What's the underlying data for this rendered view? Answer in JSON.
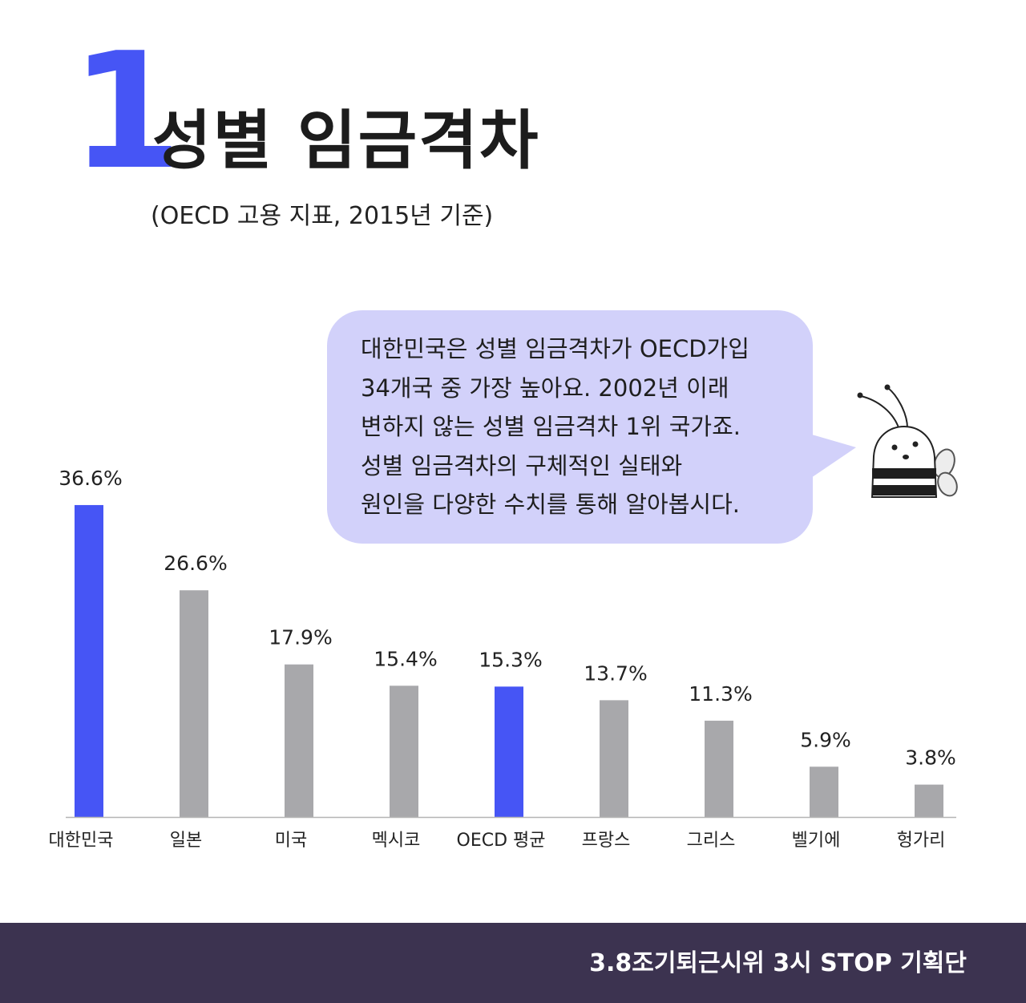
{
  "header": {
    "number": "1",
    "title": "성별 임금격차",
    "subtitle": "(OECD 고용 지표, 2015년 기준)"
  },
  "bubble": {
    "lines": [
      "대한민국은 성별 임금격차가 OECD가입",
      "34개국 중 가장 높아요. 2002년 이래",
      "변하지 않는 성별 임금격차 1위 국가죠.",
      "성별 임금격차의 구체적인 실태와",
      "원인을 다양한 수치를 통해 알아봅시다."
    ]
  },
  "footer": {
    "credit": "3.8조기퇴근시위 3시 STOP 기획단"
  },
  "colors": {
    "highlight": "#4655f5",
    "default_bar": "#a8a8ab",
    "bubble": "#d2d1fa",
    "footer": "#3c3350"
  },
  "chart_data": {
    "type": "bar",
    "title": "",
    "xlabel": "",
    "ylabel": "",
    "ylim": [
      0,
      40
    ],
    "grid": false,
    "categories": [
      "대한민국",
      "일본",
      "미국",
      "멕시코",
      "OECD 평균",
      "프랑스",
      "그리스",
      "벨기에",
      "헝가리"
    ],
    "values": [
      36.6,
      26.6,
      17.9,
      15.4,
      15.3,
      13.7,
      11.3,
      5.9,
      3.8
    ],
    "data_labels": [
      "36.6%",
      "26.6%",
      "17.9%",
      "15.4%",
      "15.3%",
      "13.7%",
      "11.3%",
      "5.9%",
      "3.8%"
    ],
    "highlighted": [
      "대한민국",
      "OECD 평균"
    ]
  }
}
